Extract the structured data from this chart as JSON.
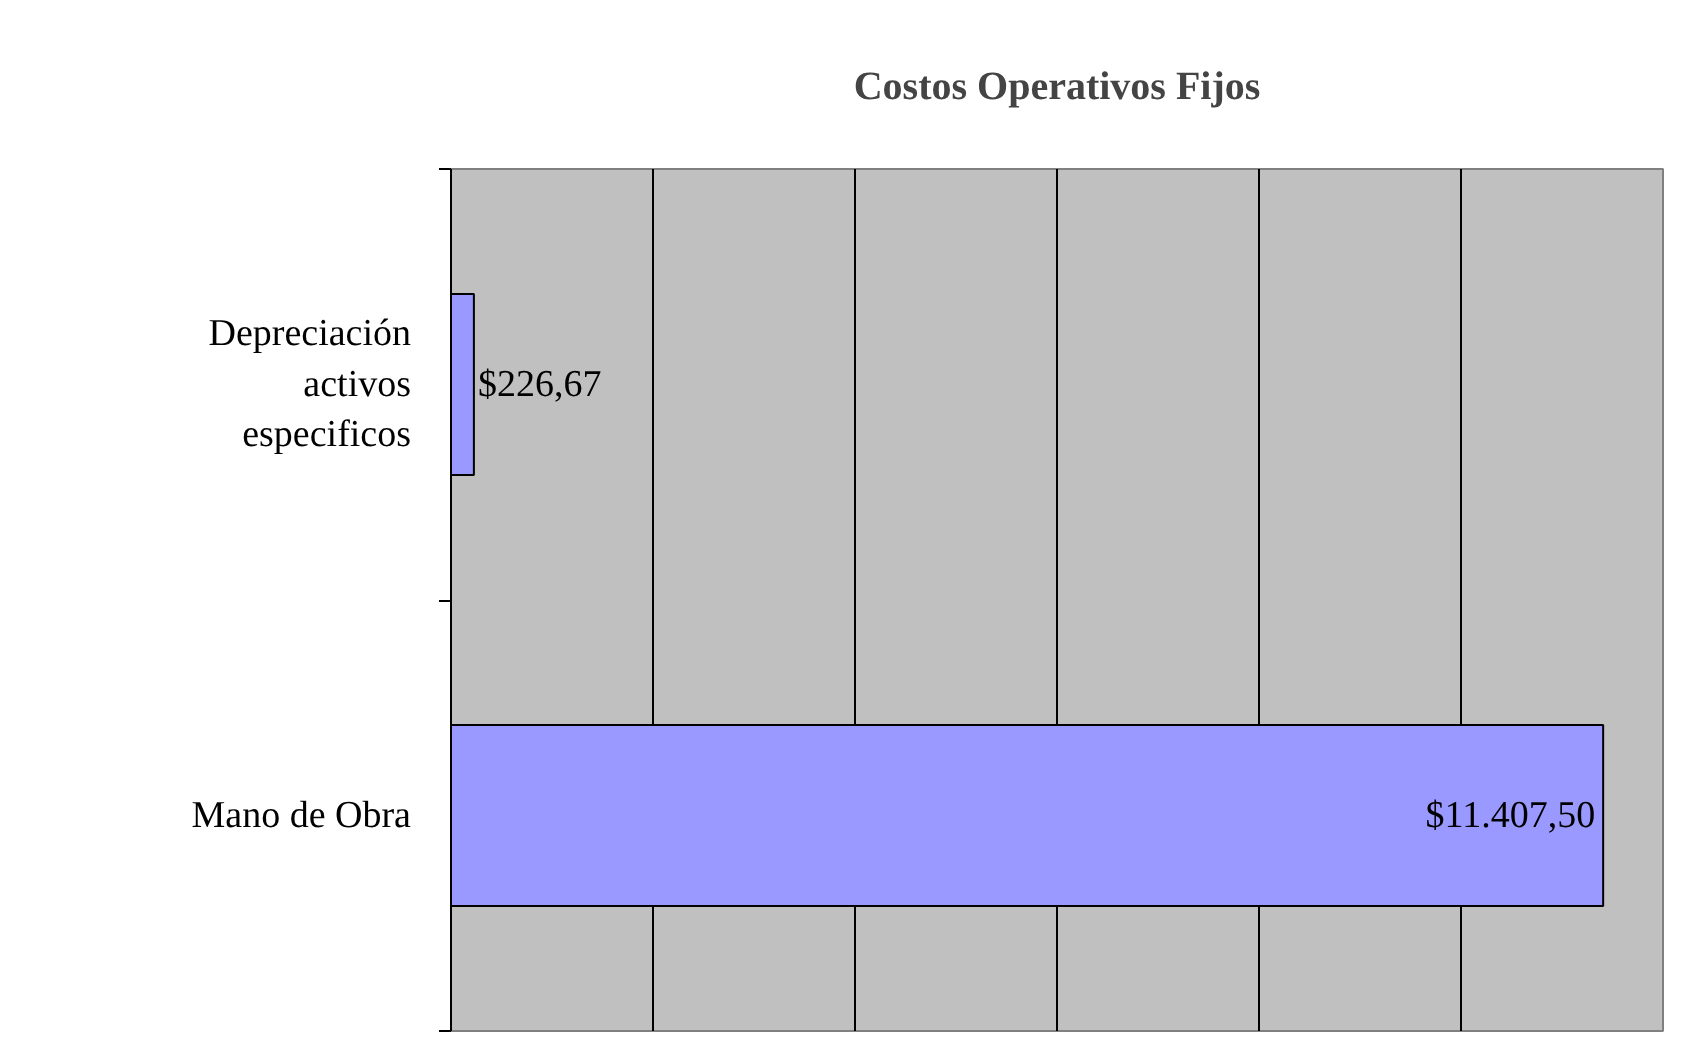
{
  "chart_data": {
    "type": "bar",
    "orientation": "horizontal",
    "title": "Costos Operativos Fijos",
    "categories": [
      "Depreciación activos especificos",
      "Mano de Obra"
    ],
    "values": [
      226.67,
      11407.5
    ],
    "value_labels": [
      "$226,67",
      "$11.407,50"
    ],
    "color": "#9999ff",
    "xlim": [
      0,
      12000
    ],
    "xticks": [
      {
        "value": 0,
        "label": null
      },
      {
        "value": 2000,
        "label": null
      },
      {
        "value": 4000,
        "label": null
      },
      {
        "value": 6000,
        "label": null
      },
      {
        "value": 8000,
        "label": null
      },
      {
        "value": 10000,
        "label": null
      },
      {
        "value": 12000,
        "label": null
      }
    ],
    "grid": "x",
    "tick_labels": "y"
  }
}
